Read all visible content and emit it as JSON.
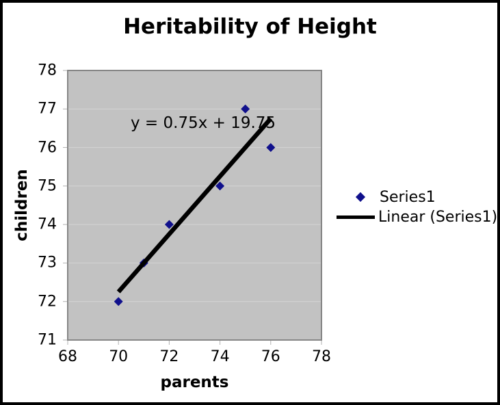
{
  "chart_data": {
    "type": "scatter",
    "title": "Heritability of Height",
    "xlabel": "parents",
    "ylabel": "children",
    "xlim": [
      68,
      78
    ],
    "ylim": [
      71,
      78
    ],
    "xticks": [
      68,
      70,
      72,
      74,
      76,
      78
    ],
    "yticks": [
      71,
      72,
      73,
      74,
      75,
      76,
      77,
      78
    ],
    "grid": "horizontal-major",
    "legend": {
      "position": "right",
      "entries": [
        "Series1",
        "Linear (Series1)"
      ]
    },
    "series": [
      {
        "name": "Series1",
        "type": "scatter",
        "marker": "diamond",
        "color": "#10108c",
        "points": [
          [
            70,
            72
          ],
          [
            71,
            73
          ],
          [
            72,
            74
          ],
          [
            74,
            75
          ],
          [
            75,
            77
          ],
          [
            76,
            76
          ]
        ]
      },
      {
        "name": "Linear (Series1)",
        "type": "trendline",
        "color": "#000000",
        "equation": "y = 0.75x + 19.75",
        "slope": 0.75,
        "intercept": 19.75,
        "x_range": [
          70,
          76
        ]
      }
    ],
    "colors": {
      "plot_bg": "#c2c2c2",
      "plot_border": "#868686",
      "gridline": "#d5d5d5",
      "tick": "#b0b0b0",
      "text": "#000000",
      "outer_border": "#000000"
    }
  }
}
